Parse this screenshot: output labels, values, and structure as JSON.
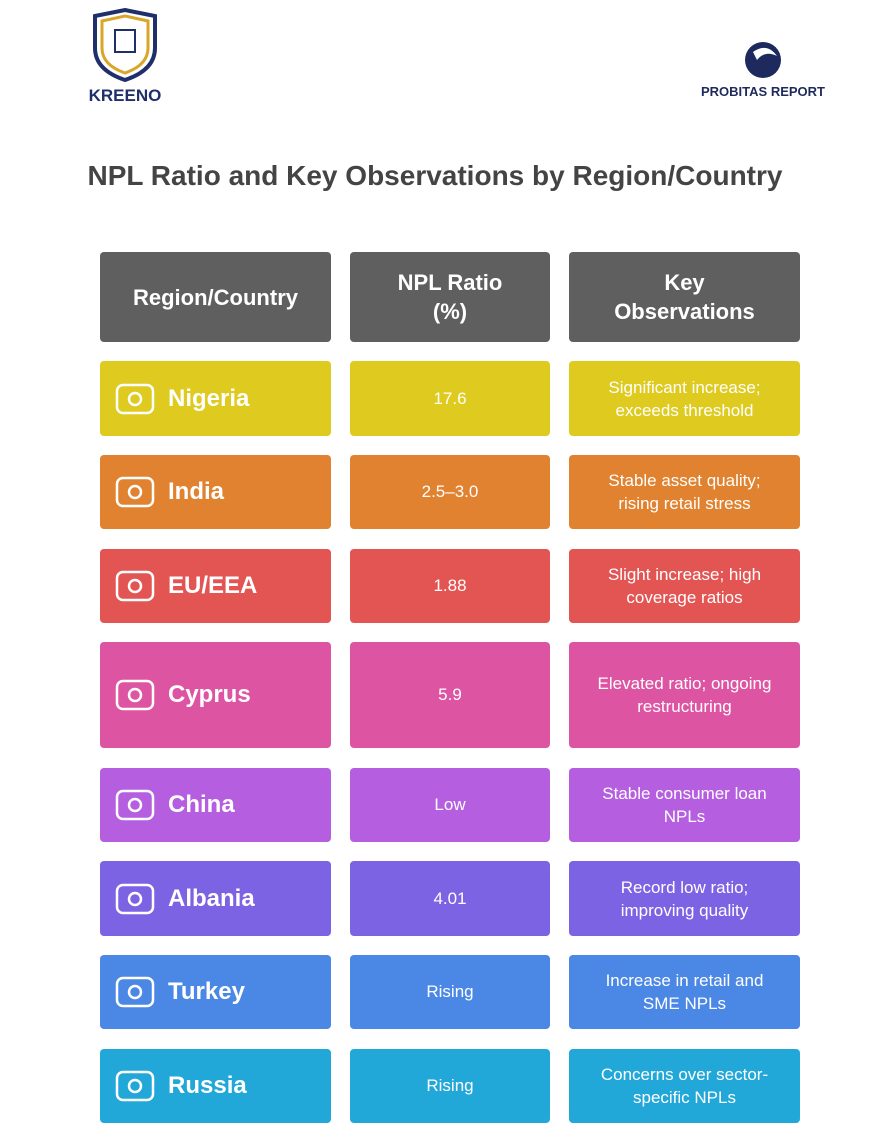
{
  "header": {
    "left_logo": "KREENO",
    "right_logo": "PROBITAS REPORT"
  },
  "title": "NPL Ratio and Key Observations by Region/Country",
  "table": {
    "columns": [
      "Region/Country",
      "NPL Ratio (%)",
      "Key Observations"
    ],
    "rows": [
      [
        "Nigeria",
        "17.6",
        "Significant increase; exceeds threshold"
      ],
      [
        "India",
        "2.5–3.0",
        "Stable asset quality; rising retail stress"
      ],
      [
        "EU/EEA",
        "1.88",
        "Slight increase; high coverage ratios"
      ],
      [
        "Cyprus",
        "5.9",
        "Elevated ratio; ongoing restructuring"
      ],
      [
        "China",
        "Low",
        "Stable consumer loan NPLs"
      ],
      [
        "Albania",
        "4.01",
        "Record low ratio; improving quality"
      ],
      [
        "Turkey",
        "Rising",
        "Increase in retail and SME NPLs"
      ],
      [
        "Russia",
        "Rising",
        "Concerns over sector-specific NPLs"
      ]
    ]
  }
}
